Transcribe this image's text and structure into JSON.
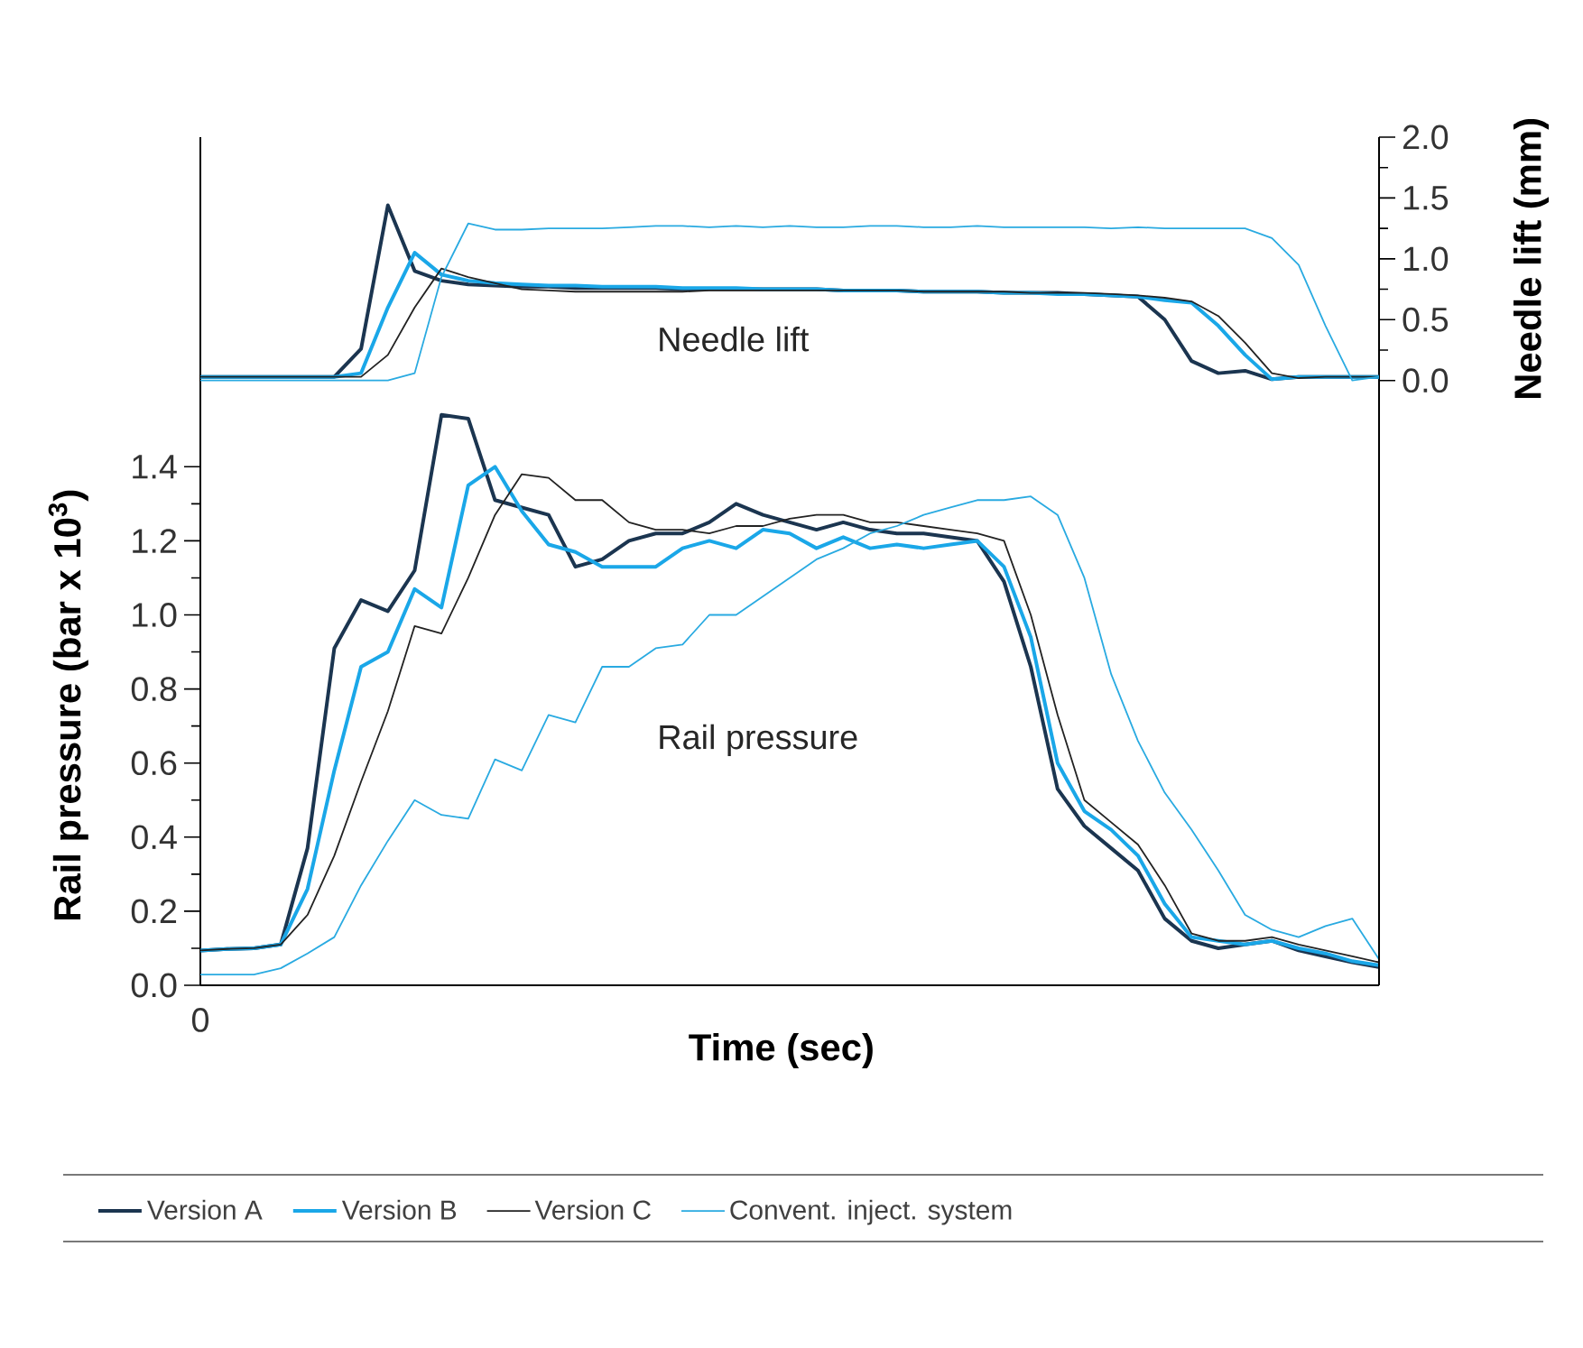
{
  "chart_data": {
    "type": "line",
    "xlabel": "Time (sec)",
    "ylabel": "Rail pressure (bar x 10$^{3}$)",
    "y2label": "Needle lift (mm)",
    "annotations": [
      "Needle lift",
      "Rail pressure"
    ],
    "categories": [
      "0",
      null,
      null,
      null,
      null,
      null,
      null,
      null,
      null,
      null,
      null,
      null,
      null,
      null,
      null,
      null,
      null,
      null,
      null,
      null,
      null,
      null,
      null,
      null,
      null,
      null,
      null,
      null,
      null,
      null,
      null,
      null,
      null,
      null,
      null,
      null,
      null,
      null,
      null,
      null,
      null,
      null,
      null,
      null,
      null
    ],
    "ylim": [
      0,
      2.29
    ],
    "yticks": [
      {
        "value": 0,
        "label": "0.0"
      },
      {
        "value": 0.2,
        "label": "0.2"
      },
      {
        "value": 0.4,
        "label": "0.4"
      },
      {
        "value": 0.6,
        "label": "0.6"
      },
      {
        "value": 0.8,
        "label": "0.8"
      },
      {
        "value": 1.0,
        "label": "1.0"
      },
      {
        "value": 1.2,
        "label": "1.2"
      },
      {
        "value": 1.4,
        "label": "1.4"
      }
    ],
    "y2lim": [
      -4.97,
      2.0
    ],
    "y2ticks": [
      {
        "value": 0,
        "label": "0.0"
      },
      {
        "value": 0.5,
        "label": "0.5"
      },
      {
        "value": 1.0,
        "label": "1.0"
      },
      {
        "value": 1.5,
        "label": "1.5"
      },
      {
        "value": 2.0,
        "label": "2.0"
      }
    ],
    "legend": "bottom",
    "series": [
      {
        "name": "Version A",
        "color": "#1b3550",
        "axis": "y",
        "values": [
          0.094,
          0.098,
          0.1,
          0.11,
          0.37,
          0.91,
          1.04,
          1.01,
          1.12,
          1.54,
          1.53,
          1.31,
          1.29,
          1.27,
          1.13,
          1.15,
          1.2,
          1.22,
          1.22,
          1.25,
          1.3,
          1.27,
          1.25,
          1.23,
          1.25,
          1.23,
          1.22,
          1.22,
          1.21,
          1.2,
          1.09,
          0.86,
          0.53,
          0.43,
          0.37,
          0.31,
          0.18,
          0.12,
          0.1,
          0.11,
          0.12,
          0.094,
          0.078,
          0.062,
          0.049
        ]
      },
      {
        "name": "Version B",
        "color": "#1aa7e8",
        "axis": "y",
        "values": [
          0.094,
          0.098,
          0.1,
          0.11,
          0.26,
          0.58,
          0.86,
          0.9,
          1.07,
          1.02,
          1.35,
          1.4,
          1.28,
          1.19,
          1.17,
          1.13,
          1.13,
          1.13,
          1.18,
          1.2,
          1.18,
          1.23,
          1.22,
          1.18,
          1.21,
          1.18,
          1.19,
          1.18,
          1.19,
          1.2,
          1.13,
          0.94,
          0.6,
          0.47,
          0.42,
          0.35,
          0.22,
          0.13,
          0.12,
          0.11,
          0.12,
          0.1,
          0.086,
          0.065,
          0.054
        ]
      },
      {
        "name": "Version C",
        "color": "#222222",
        "axis": "y",
        "values": [
          0.094,
          0.098,
          0.1,
          0.11,
          0.19,
          0.35,
          0.55,
          0.74,
          0.97,
          0.95,
          1.1,
          1.27,
          1.38,
          1.37,
          1.31,
          1.31,
          1.25,
          1.23,
          1.23,
          1.22,
          1.24,
          1.24,
          1.26,
          1.27,
          1.27,
          1.25,
          1.25,
          1.24,
          1.23,
          1.22,
          1.2,
          1.0,
          0.73,
          0.5,
          0.44,
          0.38,
          0.27,
          0.14,
          0.12,
          0.12,
          0.13,
          0.11,
          0.094,
          0.078,
          0.062
        ]
      },
      {
        "name": "Convent. inject. system",
        "color": "#29aae1",
        "axis": "y",
        "values": [
          0.029,
          0.029,
          0.029,
          0.046,
          0.086,
          0.13,
          0.27,
          0.39,
          0.5,
          0.46,
          0.45,
          0.61,
          0.58,
          0.73,
          0.71,
          0.86,
          0.86,
          0.91,
          0.92,
          1.0,
          1.0,
          1.05,
          1.1,
          1.15,
          1.18,
          1.22,
          1.24,
          1.27,
          1.29,
          1.31,
          1.31,
          1.32,
          1.27,
          1.1,
          0.84,
          0.66,
          0.52,
          0.42,
          0.31,
          0.19,
          0.15,
          0.13,
          0.16,
          0.18,
          0.07
        ]
      },
      {
        "color": "#1b3550",
        "axis": "y2",
        "values": [
          0.03,
          0.03,
          0.03,
          0.03,
          0.03,
          0.03,
          0.26,
          1.44,
          0.9,
          0.82,
          0.79,
          0.78,
          0.77,
          0.77,
          0.76,
          0.76,
          0.76,
          0.76,
          0.75,
          0.75,
          0.75,
          0.75,
          0.75,
          0.75,
          0.74,
          0.74,
          0.74,
          0.73,
          0.73,
          0.73,
          0.72,
          0.72,
          0.72,
          0.71,
          0.7,
          0.69,
          0.5,
          0.16,
          0.06,
          0.08,
          0.01,
          0.03,
          0.03,
          0.03,
          0.03
        ]
      },
      {
        "color": "#1aa7e8",
        "axis": "y2",
        "values": [
          0.03,
          0.03,
          0.03,
          0.03,
          0.03,
          0.03,
          0.06,
          0.6,
          1.05,
          0.87,
          0.82,
          0.8,
          0.79,
          0.78,
          0.78,
          0.77,
          0.77,
          0.77,
          0.76,
          0.76,
          0.76,
          0.75,
          0.75,
          0.75,
          0.74,
          0.74,
          0.74,
          0.73,
          0.73,
          0.73,
          0.72,
          0.72,
          0.71,
          0.71,
          0.7,
          0.69,
          0.66,
          0.64,
          0.45,
          0.21,
          0.01,
          0.03,
          0.03,
          0.03,
          0.03
        ]
      },
      {
        "color": "#222222",
        "axis": "y2",
        "values": [
          0.03,
          0.03,
          0.03,
          0.03,
          0.03,
          0.03,
          0.03,
          0.21,
          0.6,
          0.92,
          0.85,
          0.8,
          0.75,
          0.74,
          0.73,
          0.73,
          0.73,
          0.73,
          0.73,
          0.74,
          0.74,
          0.74,
          0.74,
          0.74,
          0.74,
          0.74,
          0.74,
          0.73,
          0.73,
          0.73,
          0.73,
          0.72,
          0.72,
          0.72,
          0.71,
          0.7,
          0.68,
          0.65,
          0.53,
          0.31,
          0.06,
          0.02,
          0.03,
          0.03,
          0.03
        ]
      },
      {
        "color": "#29aae1",
        "axis": "y2",
        "values": [
          0.0,
          0.0,
          0.0,
          0.0,
          0.0,
          0.0,
          0.0,
          0.0,
          0.06,
          0.85,
          1.29,
          1.24,
          1.24,
          1.25,
          1.25,
          1.25,
          1.26,
          1.27,
          1.27,
          1.26,
          1.27,
          1.26,
          1.27,
          1.26,
          1.26,
          1.27,
          1.27,
          1.26,
          1.26,
          1.27,
          1.26,
          1.26,
          1.26,
          1.26,
          1.25,
          1.26,
          1.25,
          1.25,
          1.25,
          1.25,
          1.17,
          0.95,
          0.45,
          0.0,
          0.03
        ]
      }
    ]
  }
}
